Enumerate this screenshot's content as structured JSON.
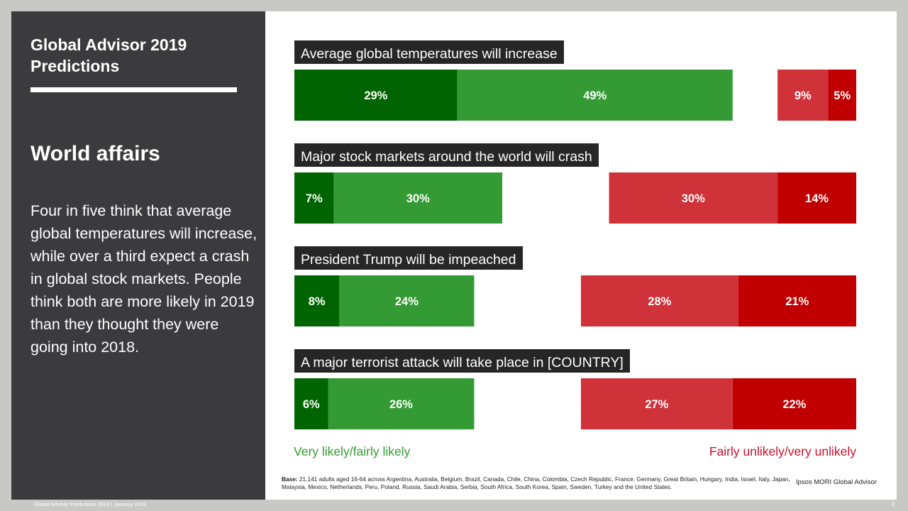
{
  "sidebar": {
    "report_title": "Global Advisor 2019 Predictions",
    "section_heading": "World affairs",
    "summary": "Four in five think that average global temperatures will increase, while over a third expect a crash in global stock markets.  People think both are more likely in 2019 than they thought they were going into 2018."
  },
  "colors": {
    "very_likely": "#006400",
    "fairly_likely": "#349a34",
    "fairly_unlikely": "#cf3339",
    "very_unlikely": "#c00000",
    "title_bg": "#262626"
  },
  "chart_data": {
    "type": "bar",
    "orientation": "horizontal-diverging",
    "segments": [
      "Very likely",
      "Fairly likely",
      "Fairly unlikely",
      "Very unlikely"
    ],
    "categories": [
      "Average global temperatures will increase",
      "Major stock markets around the world will crash",
      "President Trump will be impeached",
      "A major terrorist attack will take place in [COUNTRY]"
    ],
    "series": [
      {
        "name": "Very likely",
        "values": [
          29,
          7,
          8,
          6
        ]
      },
      {
        "name": "Fairly likely",
        "values": [
          49,
          30,
          24,
          26
        ]
      },
      {
        "name": "Fairly unlikely",
        "values": [
          9,
          30,
          28,
          27
        ]
      },
      {
        "name": "Very unlikely",
        "values": [
          5,
          14,
          21,
          22
        ]
      }
    ],
    "value_suffix": "%",
    "legend": {
      "likely": "Very likely/fairly likely",
      "unlikely": "Fairly unlikely/very unlikely"
    }
  },
  "footnote": {
    "base_label": "Base:",
    "base_text": " 21,141 adults aged 16-64 across Argentina,  Australia, Belgium,  Brazil, Canada, Chile, China, Colombia,  Czech Republic,  France, Germany, Great Britain, Hungary,  India, Israel, Italy, Japan, Malaysia, Mexico, Netherlands, Peru, Poland, Russia, Saudi Arabia, Serbia, South Africa, South Korea, Spain, Sweden, Turkey and the United States.",
    "source": "Ipsos MORI Global Advisor"
  },
  "footer": {
    "left": "Global Advisor Predictions 2019 | January 2019",
    "page_number": "2"
  }
}
